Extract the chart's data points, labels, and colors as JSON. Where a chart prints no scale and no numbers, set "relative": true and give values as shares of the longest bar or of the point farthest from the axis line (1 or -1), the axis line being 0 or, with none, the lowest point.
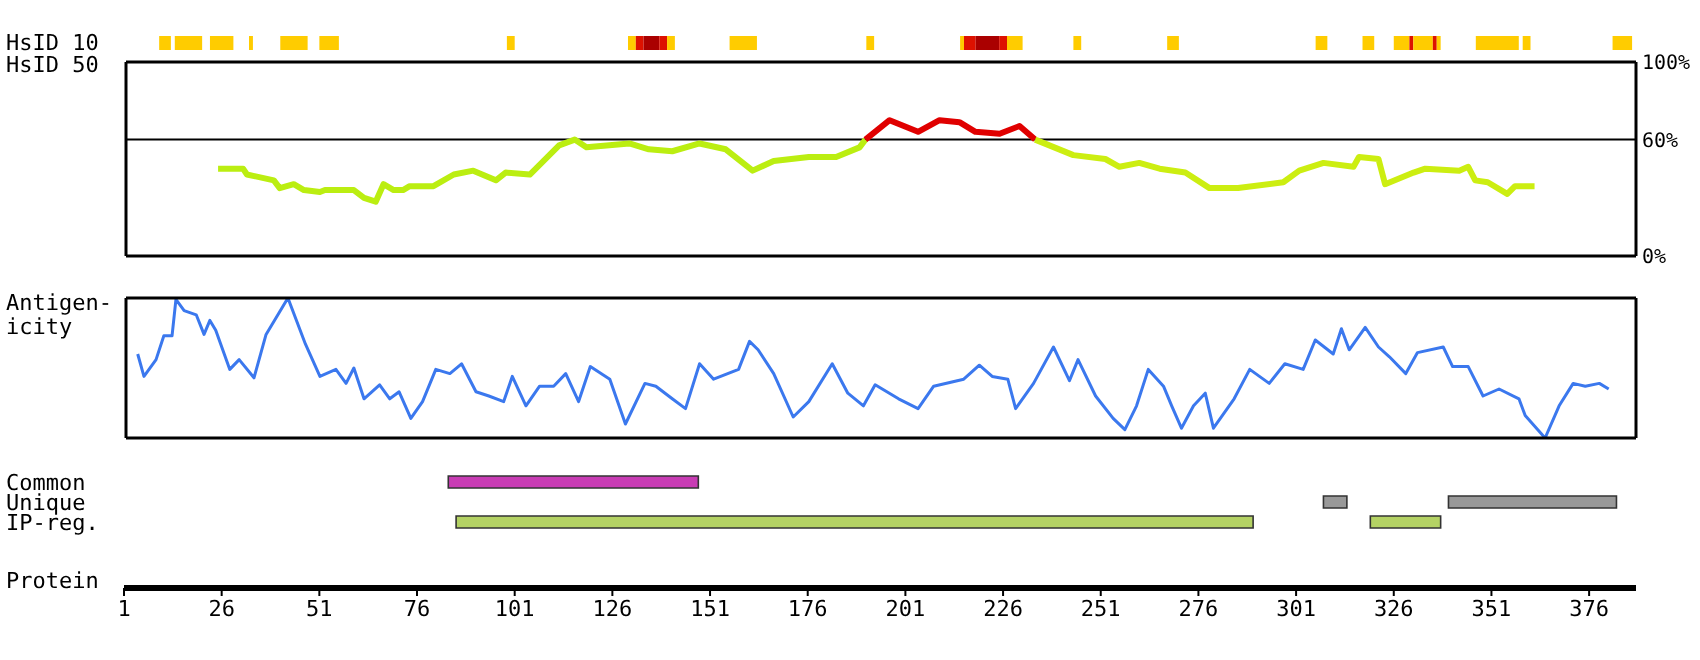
{
  "chart_data": [
    {
      "type": "bar",
      "orientation": "horizontal",
      "categories": [
        "HsID 10"
      ],
      "xlim": [
        1,
        388
      ],
      "tick_labels": false,
      "series": [
        {
          "base": [
            10
          ],
          "values": [
            3
          ],
          "color": "#ffcc00"
        },
        {
          "base": [
            14
          ],
          "values": [
            7
          ],
          "color": "#ffcc00"
        },
        {
          "base": [
            23
          ],
          "values": [
            6
          ],
          "color": "#ffcc00"
        },
        {
          "base": [
            33
          ],
          "values": [
            1
          ],
          "color": "#ffcc00"
        },
        {
          "base": [
            41
          ],
          "values": [
            7
          ],
          "color": "#ffcc00"
        },
        {
          "base": [
            51
          ],
          "values": [
            5
          ],
          "color": "#ffcc00"
        },
        {
          "base": [
            99
          ],
          "values": [
            2
          ],
          "color": "#ffcc00"
        },
        {
          "base": [
            130
          ],
          "values": [
            2
          ],
          "color": "#ffcc00"
        },
        {
          "base": [
            132
          ],
          "values": [
            2
          ],
          "color": "#dd1100"
        },
        {
          "base": [
            134
          ],
          "values": [
            4
          ],
          "color": "#aa0000"
        },
        {
          "base": [
            138
          ],
          "values": [
            2
          ],
          "color": "#dd1100"
        },
        {
          "base": [
            140
          ],
          "values": [
            2
          ],
          "color": "#ffcc00"
        },
        {
          "base": [
            156
          ],
          "values": [
            7
          ],
          "color": "#ffcc00"
        },
        {
          "base": [
            191
          ],
          "values": [
            2
          ],
          "color": "#ffcc00"
        },
        {
          "base": [
            215
          ],
          "values": [
            1
          ],
          "color": "#ffcc00"
        },
        {
          "base": [
            216
          ],
          "values": [
            3
          ],
          "color": "#dd1100"
        },
        {
          "base": [
            219
          ],
          "values": [
            6
          ],
          "color": "#aa0000"
        },
        {
          "base": [
            225
          ],
          "values": [
            2
          ],
          "color": "#dd1100"
        },
        {
          "base": [
            227
          ],
          "values": [
            4
          ],
          "color": "#ffcc00"
        },
        {
          "base": [
            244
          ],
          "values": [
            2
          ],
          "color": "#ffcc00"
        },
        {
          "base": [
            268
          ],
          "values": [
            3
          ],
          "color": "#ffcc00"
        },
        {
          "base": [
            306
          ],
          "values": [
            3
          ],
          "color": "#ffcc00"
        },
        {
          "base": [
            318
          ],
          "values": [
            3
          ],
          "color": "#ffcc00"
        },
        {
          "base": [
            326
          ],
          "values": [
            4
          ],
          "color": "#ffcc00"
        },
        {
          "base": [
            330
          ],
          "values": [
            1
          ],
          "color": "#dd1100"
        },
        {
          "base": [
            331
          ],
          "values": [
            5
          ],
          "color": "#ffcc00"
        },
        {
          "base": [
            336
          ],
          "values": [
            1
          ],
          "color": "#dd1100"
        },
        {
          "base": [
            337
          ],
          "values": [
            1
          ],
          "color": "#ffcc00"
        },
        {
          "base": [
            347
          ],
          "values": [
            11
          ],
          "color": "#ffcc00"
        },
        {
          "base": [
            359
          ],
          "values": [
            2
          ],
          "color": "#ffcc00"
        },
        {
          "base": [
            382
          ],
          "values": [
            5
          ],
          "color": "#ffcc00"
        }
      ]
    },
    {
      "type": "line",
      "ylabel": "HsID 50",
      "xlim": [
        1,
        388
      ],
      "ylim": [
        0,
        100
      ],
      "yticks": [
        {
          "value": 0,
          "label": "0%"
        },
        {
          "value": 60,
          "label": "60%"
        },
        {
          "value": 100,
          "label": "100%"
        }
      ],
      "tick_labels": "y",
      "marker": "none",
      "ref_lines": [
        {
          "axis": "y",
          "value": 60,
          "color": "#000000"
        }
      ],
      "series": [
        {
          "color": "#bbee11",
          "x": [
            24.6,
            31,
            32,
            38.9,
            40.4,
            44,
            46.6,
            50.7,
            52,
            59.4,
            62,
            65,
            67,
            69.6,
            72,
            73.7,
            79.8,
            85,
            90,
            95.8,
            98.3,
            104.5,
            112,
            116,
            119,
            130,
            135,
            141,
            148,
            154.7,
            161.6,
            167,
            176,
            183,
            189,
            190.5
          ],
          "values": [
            45,
            45,
            42,
            39,
            35,
            37,
            34,
            33,
            34,
            34,
            30,
            28,
            37,
            34,
            34,
            36,
            36,
            42,
            44,
            39,
            43,
            42,
            57,
            60,
            56,
            58,
            55,
            54,
            58,
            55,
            44,
            49,
            51,
            51,
            56,
            60
          ]
        },
        {
          "color": "#e00000",
          "x": [
            190.5,
            196.7,
            204,
            209.5,
            214.6,
            218.7,
            224.9,
            230,
            234
          ],
          "values": [
            60,
            70,
            64,
            70,
            69,
            64,
            63,
            67,
            60
          ]
        },
        {
          "color": "#ccee11",
          "x": [
            234,
            243.8,
            252,
            255.6,
            260.7,
            265.9,
            272.5,
            278.7,
            286,
            297.6,
            301.7,
            307.9,
            315.6,
            317,
            322,
            323.7,
            331,
            334,
            342.7,
            345,
            346.8,
            350,
            355,
            357,
            362
          ],
          "values": [
            60,
            52,
            50,
            46,
            48,
            45,
            43,
            35,
            35,
            38,
            44,
            48,
            46,
            51,
            50,
            37,
            43,
            45,
            44,
            46,
            39,
            38,
            32,
            36,
            36
          ]
        }
      ]
    },
    {
      "type": "line",
      "ylabel": "Antigen-\nicity",
      "xlim": [
        1,
        388
      ],
      "relative": true,
      "tick_labels": false,
      "marker": "none",
      "series": [
        {
          "color": "#3b78ee",
          "x": [
            4,
            5.6,
            8.7,
            10.7,
            12.8,
            13.8,
            15.9,
            19,
            21,
            22.5,
            24,
            27.6,
            30,
            33.8,
            36.9,
            42.5,
            47,
            50.7,
            54.8,
            57.4,
            59.4,
            62,
            66,
            68.6,
            71,
            74,
            77,
            80.4,
            84,
            87,
            90.7,
            94,
            97.8,
            100,
            103.5,
            107,
            110.6,
            113.7,
            117,
            120,
            125,
            129,
            134,
            136.8,
            141,
            144.4,
            148,
            151.6,
            158,
            160.8,
            163,
            167,
            172,
            176,
            182,
            186,
            190,
            193,
            199,
            204,
            208,
            215.7,
            219.7,
            223,
            227,
            229,
            233.6,
            238.7,
            242.8,
            245,
            249.5,
            254,
            257,
            260,
            263,
            266.9,
            269,
            271.5,
            274.6,
            277.6,
            279.7,
            285,
            289,
            294,
            298,
            302.7,
            305.8,
            310.4,
            312.5,
            314.5,
            318.6,
            322,
            324.8,
            329,
            332,
            338.6,
            341,
            345,
            348.8,
            352.9,
            358,
            359.6,
            364.7,
            368.3,
            371.9,
            375,
            378.6,
            381
          ],
          "values": [
            0.6,
            0.44,
            0.56,
            0.73,
            0.73,
            0.99,
            0.91,
            0.88,
            0.74,
            0.84,
            0.77,
            0.49,
            0.56,
            0.43,
            0.74,
            1,
            0.67,
            0.44,
            0.49,
            0.39,
            0.5,
            0.28,
            0.38,
            0.28,
            0.33,
            0.14,
            0.26,
            0.49,
            0.46,
            0.53,
            0.33,
            0.3,
            0.26,
            0.44,
            0.23,
            0.37,
            0.37,
            0.46,
            0.26,
            0.51,
            0.42,
            0.1,
            0.39,
            0.37,
            0.28,
            0.21,
            0.53,
            0.42,
            0.49,
            0.69,
            0.63,
            0.46,
            0.15,
            0.26,
            0.53,
            0.32,
            0.23,
            0.38,
            0.28,
            0.21,
            0.37,
            0.42,
            0.52,
            0.44,
            0.42,
            0.21,
            0.39,
            0.65,
            0.41,
            0.56,
            0.3,
            0.14,
            0.06,
            0.23,
            0.49,
            0.37,
            0.23,
            0.07,
            0.23,
            0.32,
            0.07,
            0.28,
            0.49,
            0.39,
            0.53,
            0.49,
            0.7,
            0.6,
            0.78,
            0.63,
            0.79,
            0.65,
            0.58,
            0.46,
            0.61,
            0.65,
            0.51,
            0.51,
            0.3,
            0.35,
            0.28,
            0.16,
            0,
            0.23,
            0.39,
            0.37,
            0.39,
            0.35
          ]
        }
      ]
    },
    {
      "type": "bar",
      "orientation": "horizontal",
      "xlabel": "Protein",
      "categories": [
        "Common",
        "Unique",
        "IP-reg."
      ],
      "xlim": [
        1,
        388
      ],
      "xticks": [
        1,
        26,
        51,
        76,
        101,
        126,
        151,
        176,
        201,
        226,
        251,
        276,
        301,
        326,
        351,
        376
      ],
      "series": [
        {
          "base": [
            84,
            308,
            86
          ],
          "values": [
            64,
            6,
            204
          ],
          "colors": [
            "#c83cb4",
            "#999999",
            "#b4d264"
          ]
        },
        {
          "base": [
            null,
            340,
            320
          ],
          "values": [
            null,
            43,
            18
          ],
          "colors": [
            null,
            "#999999",
            "#b4d264"
          ]
        }
      ]
    }
  ]
}
